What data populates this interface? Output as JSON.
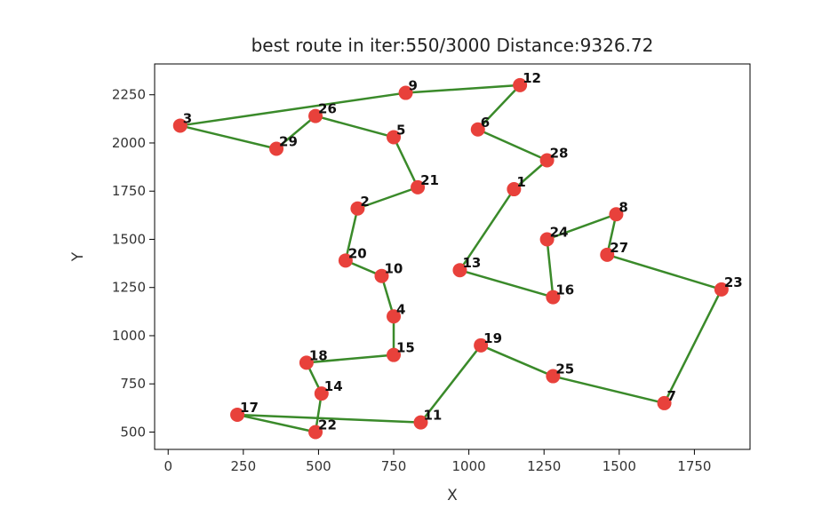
{
  "chart_data": {
    "type": "scatter",
    "title": "best route in iter:550/3000 Distance:9326.72",
    "xlabel": "X",
    "ylabel": "Y",
    "xlim": [
      -45,
      1935
    ],
    "ylim": [
      410,
      2410
    ],
    "xticks": [
      0,
      250,
      500,
      750,
      1000,
      1250,
      1500,
      1750
    ],
    "yticks": [
      500,
      750,
      1000,
      1250,
      1500,
      1750,
      2000,
      2250
    ],
    "point_color": "#e8413b",
    "route_color": "#3a8a2a",
    "points": [
      {
        "id": "1",
        "x": 1150,
        "y": 1760
      },
      {
        "id": "2",
        "x": 630,
        "y": 1660
      },
      {
        "id": "3",
        "x": 40,
        "y": 2090
      },
      {
        "id": "4",
        "x": 750,
        "y": 1100
      },
      {
        "id": "5",
        "x": 750,
        "y": 2030
      },
      {
        "id": "6",
        "x": 1030,
        "y": 2070
      },
      {
        "id": "7",
        "x": 1650,
        "y": 650
      },
      {
        "id": "8",
        "x": 1490,
        "y": 1630
      },
      {
        "id": "9",
        "x": 790,
        "y": 2260
      },
      {
        "id": "10",
        "x": 710,
        "y": 1310
      },
      {
        "id": "11",
        "x": 840,
        "y": 550
      },
      {
        "id": "12",
        "x": 1170,
        "y": 2300
      },
      {
        "id": "13",
        "x": 970,
        "y": 1340
      },
      {
        "id": "14",
        "x": 510,
        "y": 700
      },
      {
        "id": "15",
        "x": 750,
        "y": 900
      },
      {
        "id": "16",
        "x": 1280,
        "y": 1200
      },
      {
        "id": "17",
        "x": 230,
        "y": 590
      },
      {
        "id": "18",
        "x": 460,
        "y": 860
      },
      {
        "id": "19",
        "x": 1040,
        "y": 950
      },
      {
        "id": "20",
        "x": 590,
        "y": 1390
      },
      {
        "id": "21",
        "x": 830,
        "y": 1770
      },
      {
        "id": "22",
        "x": 490,
        "y": 500
      },
      {
        "id": "23",
        "x": 1840,
        "y": 1240
      },
      {
        "id": "24",
        "x": 1260,
        "y": 1500
      },
      {
        "id": "25",
        "x": 1280,
        "y": 790
      },
      {
        "id": "26",
        "x": 490,
        "y": 2140
      },
      {
        "id": "27",
        "x": 1460,
        "y": 1420
      },
      {
        "id": "28",
        "x": 1260,
        "y": 1910
      },
      {
        "id": "29",
        "x": 360,
        "y": 1970
      }
    ],
    "route": [
      "12",
      "6",
      "28",
      "1",
      "13",
      "16",
      "24",
      "8",
      "27",
      "23",
      "7",
      "25",
      "19",
      "11",
      "17",
      "22",
      "14",
      "18",
      "15",
      "4",
      "10",
      "20",
      "2",
      "21",
      "5",
      "26",
      "29",
      "3",
      "9",
      "12"
    ]
  }
}
